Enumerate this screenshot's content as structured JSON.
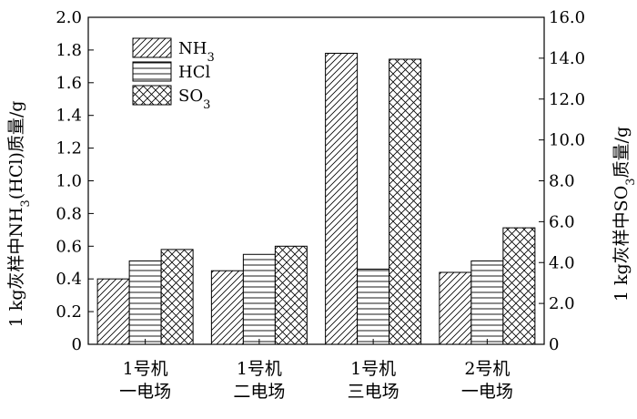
{
  "chart_data": {
    "type": "bar",
    "categories": [
      [
        "1号机",
        "一电场"
      ],
      [
        "1号机",
        "二电场"
      ],
      [
        "1号机",
        "三电场"
      ],
      [
        "2号机",
        "一电场"
      ]
    ],
    "series": [
      {
        "name": "NH3",
        "label_main": "NH",
        "label_sub": "3",
        "axis": "left",
        "pattern": "diagonal-hatch",
        "values": [
          0.4,
          0.45,
          1.78,
          0.44
        ]
      },
      {
        "name": "HCl",
        "label_main": "HCl",
        "label_sub": "",
        "axis": "left",
        "pattern": "horizontal-lines",
        "values": [
          0.51,
          0.55,
          0.46,
          0.51
        ]
      },
      {
        "name": "SO3",
        "label_main": "SO",
        "label_sub": "3",
        "axis": "right",
        "pattern": "cross-hatch",
        "values": [
          4.64,
          4.8,
          13.95,
          5.7
        ]
      }
    ],
    "y_left": {
      "label_main": "1 kg灰样中NH",
      "label_sub": "3",
      "label_rest": "(HCl)质量/g",
      "range": [
        0,
        2.0
      ],
      "ticks": [
        "0",
        "0.2",
        "0.4",
        "0.6",
        "0.8",
        "1.0",
        "1.2",
        "1.4",
        "1.6",
        "1.8",
        "2.0"
      ]
    },
    "y_right": {
      "label_main": "1 kg灰样中SO",
      "label_sub": "3",
      "label_rest": "质量/g",
      "range": [
        0,
        16.0
      ],
      "ticks": [
        "0",
        "2.0",
        "4.0",
        "6.0",
        "8.0",
        "10.0",
        "12.0",
        "14.0",
        "16.0"
      ]
    },
    "legend_position": "top-left",
    "grid": false
  }
}
